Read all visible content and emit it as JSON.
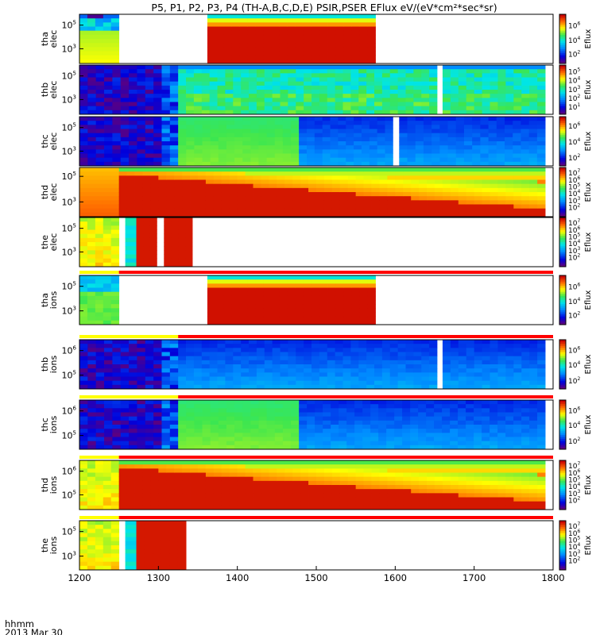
{
  "title": "P5, P1, P2, P3, P4 (TH-A,B,C,D,E) PSIR,PSER EFlux eV/(eV*cm²*sec*sr)",
  "footer": {
    "label_line1": "hhmm",
    "label_line2": "2013 Mar 30"
  },
  "colors": {
    "grid": "#000000",
    "flag_yellow": "#ffff00",
    "flag_red": "#ff0000",
    "gap": "#ffffff"
  },
  "chart_data": {
    "type": "heatmap",
    "xlim": [
      1200,
      1800
    ],
    "x_ticks": [
      1200,
      1300,
      1400,
      1500,
      1600,
      1700,
      1800
    ],
    "cbar_unit": "Eflux",
    "panels": [
      {
        "id": "tha-elec",
        "ylabel": [
          "tha",
          "elec"
        ],
        "yticks": [
          {
            "label": "10",
            "exp": "5",
            "pos": 0.22
          },
          {
            "label": "10",
            "exp": "3",
            "pos": 0.7
          }
        ],
        "cbar_ticks": [
          {
            "label": "10",
            "exp": "6",
            "pos": 0.22
          },
          {
            "label": "10",
            "exp": "4",
            "pos": 0.52
          },
          {
            "label": "10",
            "exp": "2",
            "pos": 0.8
          }
        ],
        "segments": [
          {
            "x0": 1200,
            "x1": 1250,
            "profile": "noisy_dark_top"
          },
          {
            "x0": 1362,
            "x1": 1575,
            "profile": "red_yellow_top"
          }
        ]
      },
      {
        "id": "thb-elec",
        "ylabel": [
          "thb",
          "elec"
        ],
        "yticks": [
          {
            "label": "10",
            "exp": "5",
            "pos": 0.22
          },
          {
            "label": "10",
            "exp": "3",
            "pos": 0.7
          }
        ],
        "cbar_ticks": [
          {
            "label": "10",
            "exp": "5",
            "pos": 0.12
          },
          {
            "label": "10",
            "exp": "4",
            "pos": 0.3
          },
          {
            "label": "10",
            "exp": "3",
            "pos": 0.48
          },
          {
            "label": "10",
            "exp": "2",
            "pos": 0.66
          },
          {
            "label": "10",
            "exp": "1",
            "pos": 0.84
          }
        ],
        "segments": [
          {
            "x0": 1200,
            "x1": 1325,
            "profile": "noise_purple"
          },
          {
            "x0": 1325,
            "x1": 1653,
            "profile": "cyan_mixed"
          },
          {
            "x0": 1660,
            "x1": 1790,
            "profile": "cyan_mixed"
          }
        ]
      },
      {
        "id": "thc-elec",
        "ylabel": [
          "thc",
          "elec"
        ],
        "yticks": [
          {
            "label": "10",
            "exp": "5",
            "pos": 0.22
          },
          {
            "label": "10",
            "exp": "3",
            "pos": 0.7
          }
        ],
        "cbar_ticks": [
          {
            "label": "10",
            "exp": "6",
            "pos": 0.18
          },
          {
            "label": "10",
            "exp": "4",
            "pos": 0.5
          },
          {
            "label": "10",
            "exp": "2",
            "pos": 0.82
          }
        ],
        "segments": [
          {
            "x0": 1200,
            "x1": 1325,
            "profile": "noise_purple"
          },
          {
            "x0": 1325,
            "x1": 1478,
            "profile": "green_block"
          },
          {
            "x0": 1478,
            "x1": 1597,
            "profile": "blue_band"
          },
          {
            "x0": 1605,
            "x1": 1790,
            "profile": "blue_band"
          }
        ]
      },
      {
        "id": "thd-elec",
        "ylabel": [
          "thd",
          "elec"
        ],
        "yticks": [
          {
            "label": "10",
            "exp": "5",
            "pos": 0.18
          },
          {
            "label": "10",
            "exp": "3",
            "pos": 0.7
          }
        ],
        "cbar_ticks": [
          {
            "label": "10",
            "exp": "7",
            "pos": 0.1
          },
          {
            "label": "10",
            "exp": "6",
            "pos": 0.24
          },
          {
            "label": "10",
            "exp": "5",
            "pos": 0.38
          },
          {
            "label": "10",
            "exp": "4",
            "pos": 0.52
          },
          {
            "label": "10",
            "exp": "3",
            "pos": 0.66
          },
          {
            "label": "10",
            "exp": "2",
            "pos": 0.8
          }
        ],
        "segments": [
          {
            "x0": 1200,
            "x1": 1250,
            "profile": "orange_low"
          },
          {
            "x0": 1250,
            "x1": 1790,
            "profile": "red_fade"
          }
        ]
      },
      {
        "id": "the-elec",
        "ylabel": [
          "the",
          "elec"
        ],
        "yticks": [
          {
            "label": "10",
            "exp": "5",
            "pos": 0.22
          },
          {
            "label": "10",
            "exp": "3",
            "pos": 0.7
          }
        ],
        "cbar_ticks": [
          {
            "label": "10",
            "exp": "7",
            "pos": 0.1
          },
          {
            "label": "10",
            "exp": "6",
            "pos": 0.24
          },
          {
            "label": "10",
            "exp": "5",
            "pos": 0.38
          },
          {
            "label": "10",
            "exp": "4",
            "pos": 0.52
          },
          {
            "label": "10",
            "exp": "3",
            "pos": 0.66
          },
          {
            "label": "10",
            "exp": "2",
            "pos": 0.8
          }
        ],
        "segments": [
          {
            "x0": 1200,
            "x1": 1250,
            "profile": "yellow_green"
          },
          {
            "x0": 1258,
            "x1": 1272,
            "profile": "cyan_strip"
          },
          {
            "x0": 1272,
            "x1": 1298,
            "profile": "red_block"
          },
          {
            "x0": 1307,
            "x1": 1343,
            "profile": "red_block"
          }
        ]
      },
      {
        "id": "tha-ions",
        "ylabel": [
          "tha",
          "ions"
        ],
        "yticks": [
          {
            "label": "10",
            "exp": "5",
            "pos": 0.22
          },
          {
            "label": "10",
            "exp": "3",
            "pos": 0.72
          }
        ],
        "cbar_ticks": [
          {
            "label": "10",
            "exp": "6",
            "pos": 0.22
          },
          {
            "label": "10",
            "exp": "4",
            "pos": 0.52
          },
          {
            "label": "10",
            "exp": "2",
            "pos": 0.8
          }
        ],
        "flag": {
          "yellow_to": 1250
        },
        "segments": [
          {
            "x0": 1200,
            "x1": 1250,
            "profile": "green_ion"
          },
          {
            "x0": 1362,
            "x1": 1575,
            "profile": "red_yellow_top"
          }
        ]
      },
      {
        "id": "thb-ions",
        "ylabel": [
          "thb",
          "ions"
        ],
        "yticks": [
          {
            "label": "10",
            "exp": "6",
            "pos": 0.22
          },
          {
            "label": "10",
            "exp": "5",
            "pos": 0.72
          }
        ],
        "cbar_ticks": [
          {
            "label": "10",
            "exp": "6",
            "pos": 0.2
          },
          {
            "label": "10",
            "exp": "4",
            "pos": 0.5
          },
          {
            "label": "10",
            "exp": "2",
            "pos": 0.82
          }
        ],
        "flag": {
          "yellow_to": 1325
        },
        "segments": [
          {
            "x0": 1200,
            "x1": 1325,
            "profile": "noise_purple"
          },
          {
            "x0": 1325,
            "x1": 1653,
            "profile": "blue_band"
          },
          {
            "x0": 1660,
            "x1": 1790,
            "profile": "blue_band"
          }
        ]
      },
      {
        "id": "thc-ions",
        "ylabel": [
          "thc",
          "ions"
        ],
        "yticks": [
          {
            "label": "10",
            "exp": "6",
            "pos": 0.22
          },
          {
            "label": "10",
            "exp": "5",
            "pos": 0.72
          }
        ],
        "cbar_ticks": [
          {
            "label": "10",
            "exp": "6",
            "pos": 0.2
          },
          {
            "label": "10",
            "exp": "4",
            "pos": 0.5
          },
          {
            "label": "10",
            "exp": "2",
            "pos": 0.82
          }
        ],
        "flag": {
          "yellow_to": 1325
        },
        "segments": [
          {
            "x0": 1200,
            "x1": 1325,
            "profile": "noise_purple"
          },
          {
            "x0": 1325,
            "x1": 1478,
            "profile": "green_block"
          },
          {
            "x0": 1478,
            "x1": 1790,
            "profile": "blue_band"
          }
        ]
      },
      {
        "id": "thd-ions",
        "ylabel": [
          "thd",
          "ions"
        ],
        "yticks": [
          {
            "label": "10",
            "exp": "6",
            "pos": 0.22
          },
          {
            "label": "10",
            "exp": "5",
            "pos": 0.7
          }
        ],
        "cbar_ticks": [
          {
            "label": "10",
            "exp": "7",
            "pos": 0.1
          },
          {
            "label": "10",
            "exp": "6",
            "pos": 0.24
          },
          {
            "label": "10",
            "exp": "5",
            "pos": 0.38
          },
          {
            "label": "10",
            "exp": "4",
            "pos": 0.52
          },
          {
            "label": "10",
            "exp": "3",
            "pos": 0.66
          },
          {
            "label": "10",
            "exp": "2",
            "pos": 0.8
          }
        ],
        "flag": {
          "yellow_to": 1250
        },
        "segments": [
          {
            "x0": 1200,
            "x1": 1250,
            "profile": "yellow_green"
          },
          {
            "x0": 1250,
            "x1": 1790,
            "profile": "red_fade"
          }
        ]
      },
      {
        "id": "the-ions",
        "ylabel": [
          "the",
          "ions"
        ],
        "yticks": [
          {
            "label": "10",
            "exp": "5",
            "pos": 0.22
          },
          {
            "label": "10",
            "exp": "3",
            "pos": 0.72
          }
        ],
        "cbar_ticks": [
          {
            "label": "10",
            "exp": "7",
            "pos": 0.1
          },
          {
            "label": "10",
            "exp": "6",
            "pos": 0.24
          },
          {
            "label": "10",
            "exp": "5",
            "pos": 0.38
          },
          {
            "label": "10",
            "exp": "4",
            "pos": 0.52
          },
          {
            "label": "10",
            "exp": "3",
            "pos": 0.66
          },
          {
            "label": "10",
            "exp": "2",
            "pos": 0.8
          }
        ],
        "flag": {
          "yellow_to": 1250
        },
        "segments": [
          {
            "x0": 1200,
            "x1": 1250,
            "profile": "yellow_green"
          },
          {
            "x0": 1258,
            "x1": 1272,
            "profile": "cyan_strip"
          },
          {
            "x0": 1272,
            "x1": 1335,
            "profile": "red_block"
          }
        ]
      }
    ]
  }
}
